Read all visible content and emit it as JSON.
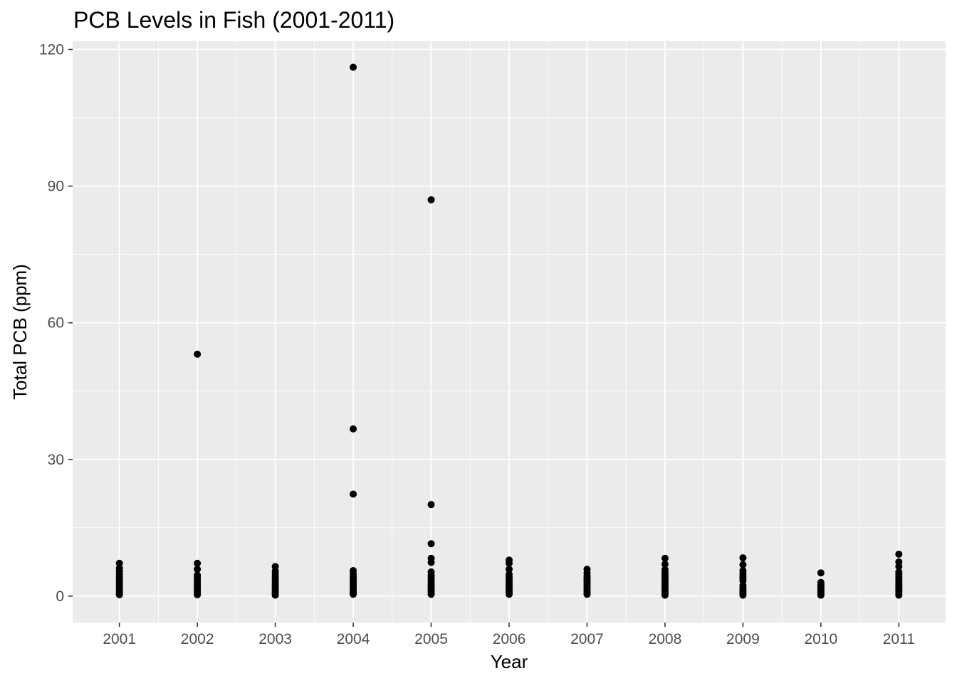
{
  "chart_data": {
    "type": "scatter",
    "title": "PCB Levels in Fish (2001-2011)",
    "xlabel": "Year",
    "ylabel": "Total PCB (ppm)",
    "x_categories": [
      "2001",
      "2002",
      "2003",
      "2004",
      "2005",
      "2006",
      "2007",
      "2008",
      "2009",
      "2010",
      "2011"
    ],
    "y_ticks": [
      0,
      30,
      60,
      90,
      120
    ],
    "ylim": [
      -5.8,
      121.8
    ],
    "grid": true,
    "background": "#ebebeb",
    "grid_color": "#ffffff",
    "point_color": "#000000",
    "points": [
      {
        "x": "2001",
        "y": 0.3
      },
      {
        "x": "2001",
        "y": 0.6
      },
      {
        "x": "2001",
        "y": 0.9
      },
      {
        "x": "2001",
        "y": 1.2
      },
      {
        "x": "2001",
        "y": 1.6
      },
      {
        "x": "2001",
        "y": 2.0
      },
      {
        "x": "2001",
        "y": 2.4
      },
      {
        "x": "2001",
        "y": 2.8
      },
      {
        "x": "2001",
        "y": 3.2
      },
      {
        "x": "2001",
        "y": 3.7
      },
      {
        "x": "2001",
        "y": 4.2
      },
      {
        "x": "2001",
        "y": 4.8
      },
      {
        "x": "2001",
        "y": 5.4
      },
      {
        "x": "2001",
        "y": 6.1
      },
      {
        "x": "2001",
        "y": 7.2
      },
      {
        "x": "2002",
        "y": 0.3
      },
      {
        "x": "2002",
        "y": 0.7
      },
      {
        "x": "2002",
        "y": 1.1
      },
      {
        "x": "2002",
        "y": 1.5
      },
      {
        "x": "2002",
        "y": 1.9
      },
      {
        "x": "2002",
        "y": 2.3
      },
      {
        "x": "2002",
        "y": 2.7
      },
      {
        "x": "2002",
        "y": 3.1
      },
      {
        "x": "2002",
        "y": 3.6
      },
      {
        "x": "2002",
        "y": 4.1
      },
      {
        "x": "2002",
        "y": 4.6
      },
      {
        "x": "2002",
        "y": 5.9
      },
      {
        "x": "2002",
        "y": 7.2
      },
      {
        "x": "2002",
        "y": 53.1
      },
      {
        "x": "2003",
        "y": 0.2
      },
      {
        "x": "2003",
        "y": 0.5
      },
      {
        "x": "2003",
        "y": 0.8
      },
      {
        "x": "2003",
        "y": 1.1
      },
      {
        "x": "2003",
        "y": 1.4
      },
      {
        "x": "2003",
        "y": 1.8
      },
      {
        "x": "2003",
        "y": 2.2
      },
      {
        "x": "2003",
        "y": 2.6
      },
      {
        "x": "2003",
        "y": 3.0
      },
      {
        "x": "2003",
        "y": 3.4
      },
      {
        "x": "2003",
        "y": 3.9
      },
      {
        "x": "2003",
        "y": 4.4
      },
      {
        "x": "2003",
        "y": 4.9
      },
      {
        "x": "2003",
        "y": 5.5
      },
      {
        "x": "2003",
        "y": 6.5
      },
      {
        "x": "2004",
        "y": 0.4
      },
      {
        "x": "2004",
        "y": 0.8
      },
      {
        "x": "2004",
        "y": 1.2
      },
      {
        "x": "2004",
        "y": 1.6
      },
      {
        "x": "2004",
        "y": 2.0
      },
      {
        "x": "2004",
        "y": 2.4
      },
      {
        "x": "2004",
        "y": 2.8
      },
      {
        "x": "2004",
        "y": 3.3
      },
      {
        "x": "2004",
        "y": 3.8
      },
      {
        "x": "2004",
        "y": 4.3
      },
      {
        "x": "2004",
        "y": 4.9
      },
      {
        "x": "2004",
        "y": 5.6
      },
      {
        "x": "2004",
        "y": 22.4
      },
      {
        "x": "2004",
        "y": 36.7
      },
      {
        "x": "2004",
        "y": 116.1
      },
      {
        "x": "2005",
        "y": 0.4
      },
      {
        "x": "2005",
        "y": 0.8
      },
      {
        "x": "2005",
        "y": 1.2
      },
      {
        "x": "2005",
        "y": 1.6
      },
      {
        "x": "2005",
        "y": 2.0
      },
      {
        "x": "2005",
        "y": 2.5
      },
      {
        "x": "2005",
        "y": 3.0
      },
      {
        "x": "2005",
        "y": 3.5
      },
      {
        "x": "2005",
        "y": 4.0
      },
      {
        "x": "2005",
        "y": 4.6
      },
      {
        "x": "2005",
        "y": 5.3
      },
      {
        "x": "2005",
        "y": 7.4
      },
      {
        "x": "2005",
        "y": 8.3
      },
      {
        "x": "2005",
        "y": 11.5
      },
      {
        "x": "2005",
        "y": 20.1
      },
      {
        "x": "2005",
        "y": 87.0
      },
      {
        "x": "2006",
        "y": 0.4
      },
      {
        "x": "2006",
        "y": 0.8
      },
      {
        "x": "2006",
        "y": 1.2
      },
      {
        "x": "2006",
        "y": 1.6
      },
      {
        "x": "2006",
        "y": 2.0
      },
      {
        "x": "2006",
        "y": 2.4
      },
      {
        "x": "2006",
        "y": 2.8
      },
      {
        "x": "2006",
        "y": 3.2
      },
      {
        "x": "2006",
        "y": 3.7
      },
      {
        "x": "2006",
        "y": 4.2
      },
      {
        "x": "2006",
        "y": 4.8
      },
      {
        "x": "2006",
        "y": 5.9
      },
      {
        "x": "2006",
        "y": 7.2
      },
      {
        "x": "2006",
        "y": 7.9
      },
      {
        "x": "2007",
        "y": 0.4
      },
      {
        "x": "2007",
        "y": 0.8
      },
      {
        "x": "2007",
        "y": 1.2
      },
      {
        "x": "2007",
        "y": 1.6
      },
      {
        "x": "2007",
        "y": 2.0
      },
      {
        "x": "2007",
        "y": 2.4
      },
      {
        "x": "2007",
        "y": 2.8
      },
      {
        "x": "2007",
        "y": 3.2
      },
      {
        "x": "2007",
        "y": 3.6
      },
      {
        "x": "2007",
        "y": 4.0
      },
      {
        "x": "2007",
        "y": 4.5
      },
      {
        "x": "2007",
        "y": 5.1
      },
      {
        "x": "2007",
        "y": 5.9
      },
      {
        "x": "2008",
        "y": 0.2
      },
      {
        "x": "2008",
        "y": 0.6
      },
      {
        "x": "2008",
        "y": 1.0
      },
      {
        "x": "2008",
        "y": 1.4
      },
      {
        "x": "2008",
        "y": 1.8
      },
      {
        "x": "2008",
        "y": 2.2
      },
      {
        "x": "2008",
        "y": 2.6
      },
      {
        "x": "2008",
        "y": 3.0
      },
      {
        "x": "2008",
        "y": 3.4
      },
      {
        "x": "2008",
        "y": 3.8
      },
      {
        "x": "2008",
        "y": 4.2
      },
      {
        "x": "2008",
        "y": 4.7
      },
      {
        "x": "2008",
        "y": 5.2
      },
      {
        "x": "2008",
        "y": 5.8
      },
      {
        "x": "2008",
        "y": 7.0
      },
      {
        "x": "2008",
        "y": 8.3
      },
      {
        "x": "2009",
        "y": 0.2
      },
      {
        "x": "2009",
        "y": 0.6
      },
      {
        "x": "2009",
        "y": 1.0
      },
      {
        "x": "2009",
        "y": 1.4
      },
      {
        "x": "2009",
        "y": 1.9
      },
      {
        "x": "2009",
        "y": 2.4
      },
      {
        "x": "2009",
        "y": 3.4
      },
      {
        "x": "2009",
        "y": 3.9
      },
      {
        "x": "2009",
        "y": 4.4
      },
      {
        "x": "2009",
        "y": 4.9
      },
      {
        "x": "2009",
        "y": 5.6
      },
      {
        "x": "2009",
        "y": 6.9
      },
      {
        "x": "2009",
        "y": 8.4
      },
      {
        "x": "2010",
        "y": 0.2
      },
      {
        "x": "2010",
        "y": 0.5
      },
      {
        "x": "2010",
        "y": 0.8
      },
      {
        "x": "2010",
        "y": 1.1
      },
      {
        "x": "2010",
        "y": 1.4
      },
      {
        "x": "2010",
        "y": 1.7
      },
      {
        "x": "2010",
        "y": 2.0
      },
      {
        "x": "2010",
        "y": 2.3
      },
      {
        "x": "2010",
        "y": 2.6
      },
      {
        "x": "2010",
        "y": 3.0
      },
      {
        "x": "2010",
        "y": 5.1
      },
      {
        "x": "2011",
        "y": 0.2
      },
      {
        "x": "2011",
        "y": 0.6
      },
      {
        "x": "2011",
        "y": 1.0
      },
      {
        "x": "2011",
        "y": 1.4
      },
      {
        "x": "2011",
        "y": 1.8
      },
      {
        "x": "2011",
        "y": 2.2
      },
      {
        "x": "2011",
        "y": 2.6
      },
      {
        "x": "2011",
        "y": 3.0
      },
      {
        "x": "2011",
        "y": 3.4
      },
      {
        "x": "2011",
        "y": 3.8
      },
      {
        "x": "2011",
        "y": 4.3
      },
      {
        "x": "2011",
        "y": 4.8
      },
      {
        "x": "2011",
        "y": 5.3
      },
      {
        "x": "2011",
        "y": 6.5
      },
      {
        "x": "2011",
        "y": 7.5
      },
      {
        "x": "2011",
        "y": 9.2
      }
    ]
  }
}
